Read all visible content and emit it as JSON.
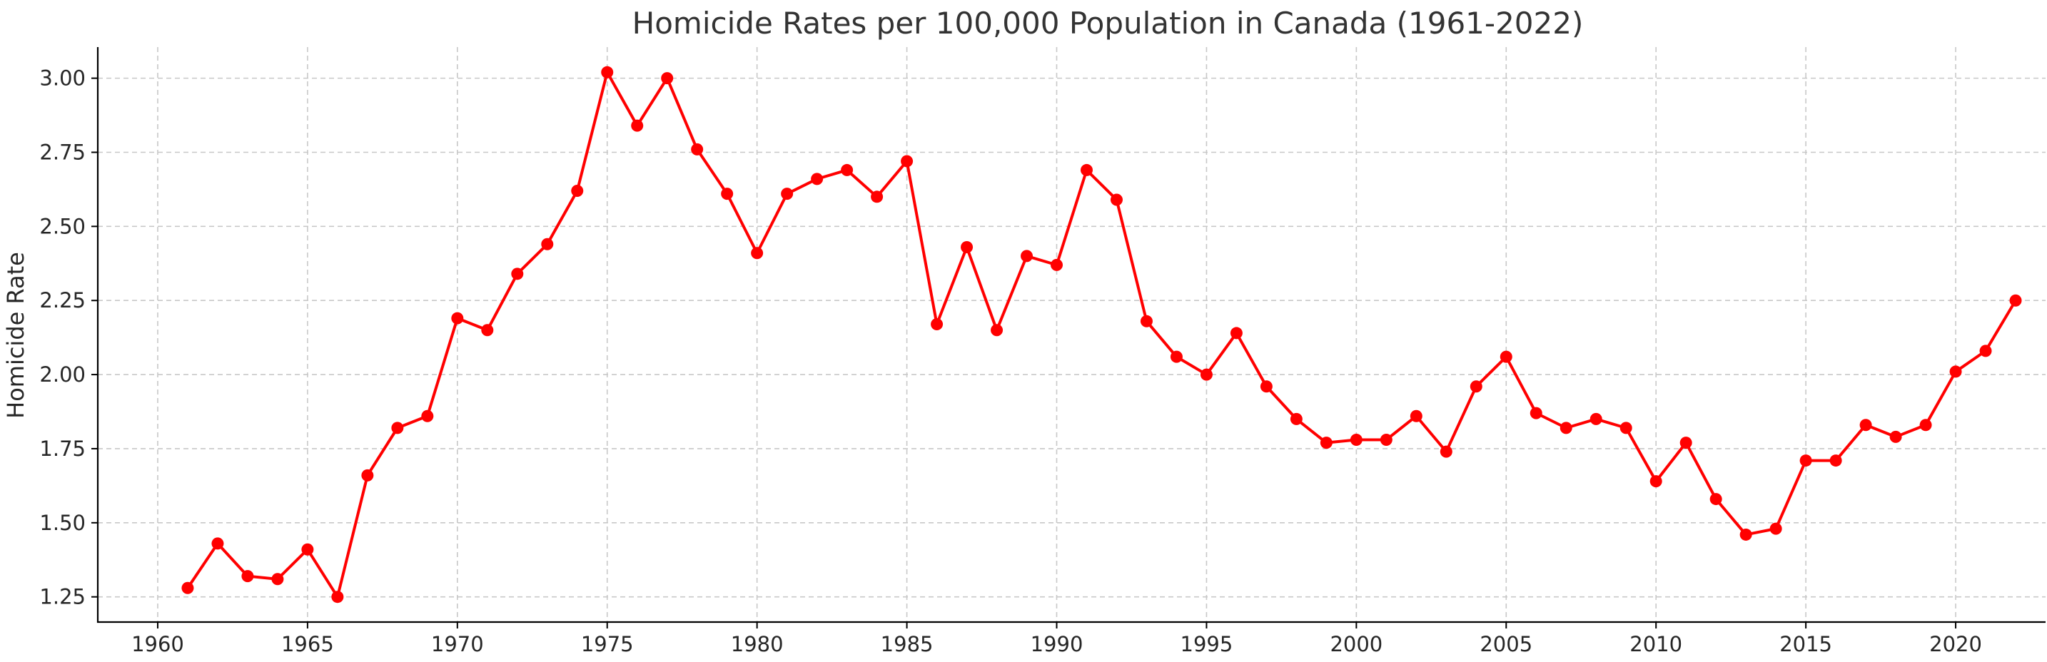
{
  "chart_data": {
    "type": "line",
    "title": "Homicide Rates per 100,000 Population in Canada (1961-2022)",
    "xlabel": "",
    "ylabel": "Homicide Rate",
    "xlim": [
      1958,
      2023
    ],
    "ylim": [
      1.165,
      3.105
    ],
    "x_ticks": [
      1960,
      1965,
      1970,
      1975,
      1980,
      1985,
      1990,
      1995,
      2000,
      2005,
      2010,
      2015,
      2020
    ],
    "y_ticks": [
      1.25,
      1.5,
      1.75,
      2.0,
      2.25,
      2.5,
      2.75,
      3.0
    ],
    "x_tick_labels": [
      "1960",
      "1965",
      "1970",
      "1975",
      "1980",
      "1985",
      "1990",
      "1995",
      "2000",
      "2005",
      "2010",
      "2015",
      "2020"
    ],
    "y_tick_labels": [
      "1.25",
      "1.50",
      "1.75",
      "2.00",
      "2.25",
      "2.50",
      "2.75",
      "3.00"
    ],
    "grid": true,
    "color": "#ff0000",
    "x": [
      1961,
      1962,
      1963,
      1964,
      1965,
      1966,
      1967,
      1968,
      1969,
      1970,
      1971,
      1972,
      1973,
      1974,
      1975,
      1976,
      1977,
      1978,
      1979,
      1980,
      1981,
      1982,
      1983,
      1984,
      1985,
      1986,
      1987,
      1988,
      1989,
      1990,
      1991,
      1992,
      1993,
      1994,
      1995,
      1996,
      1997,
      1998,
      1999,
      2000,
      2001,
      2002,
      2003,
      2004,
      2005,
      2006,
      2007,
      2008,
      2009,
      2010,
      2011,
      2012,
      2013,
      2014,
      2015,
      2016,
      2017,
      2018,
      2019,
      2020,
      2021,
      2022
    ],
    "y": [
      1.28,
      1.43,
      1.32,
      1.31,
      1.41,
      1.25,
      1.66,
      1.82,
      1.86,
      2.19,
      2.15,
      2.34,
      2.44,
      2.62,
      3.02,
      2.84,
      3.0,
      2.76,
      2.61,
      2.41,
      2.61,
      2.66,
      2.69,
      2.6,
      2.72,
      2.17,
      2.43,
      2.15,
      2.4,
      2.37,
      2.69,
      2.59,
      2.18,
      2.06,
      2.0,
      2.14,
      1.96,
      1.85,
      1.77,
      1.78,
      1.78,
      1.86,
      1.74,
      1.96,
      2.06,
      1.87,
      1.82,
      1.85,
      1.82,
      1.64,
      1.77,
      1.58,
      1.46,
      1.48,
      1.71,
      1.71,
      1.83,
      1.79,
      1.83,
      2.01,
      2.08,
      2.25
    ]
  }
}
